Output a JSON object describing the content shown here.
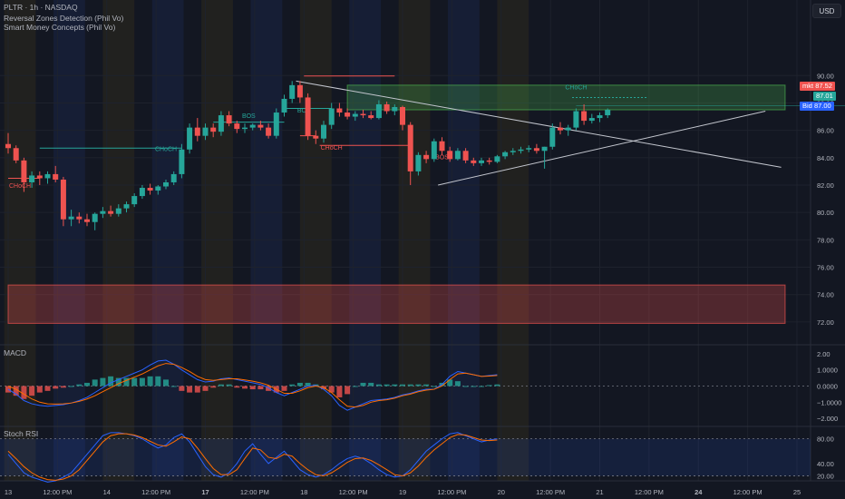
{
  "header": {
    "title": "PLTR · 1h · NASDAQ",
    "indicator_1": "Reversal Zones Detection (Phil Vo)",
    "indicator_2": "Smart Money Concepts (Phil Vo)"
  },
  "currency_label": "USD",
  "price_tags": {
    "last_label": "mkt",
    "last_value": "87.52",
    "mid_value": "87.01",
    "bid_label": "Bid",
    "bid_value": "87.00"
  },
  "colors": {
    "background": "#131722",
    "bull": "#26a69a",
    "bear": "#ef5350",
    "grid": "#1e222d",
    "text": "#b2b5be",
    "macd_line": "#2962ff",
    "signal_line": "#ff6d00",
    "demand_zone": "#ef5350",
    "supply_zone": "#4caf50",
    "session_a": "#2d2a1e",
    "session_b": "#1a2445"
  },
  "chart_data": [
    {
      "type": "candlestick",
      "title": "PLTR · 1h · NASDAQ",
      "ylim": [
        70.6,
        93.4
      ],
      "y_ticks": [
        "72.00",
        "74.00",
        "76.00",
        "78.00",
        "80.00",
        "82.00",
        "84.00",
        "86.00",
        "88.00",
        "90.00"
      ],
      "x_tick_labels": [
        "13",
        "12:00 PM",
        "14",
        "12:00 PM",
        "17",
        "12:00 PM",
        "18",
        "12:00 PM",
        "19",
        "12:00 PM",
        "20",
        "12:00 PM",
        "21",
        "12:00 PM",
        "24",
        "12:00 PM",
        "25"
      ],
      "x_tick_bars": [
        0,
        6.25,
        12.5,
        18.75,
        25,
        31.25,
        37.5,
        43.75,
        50,
        56.25,
        62.5,
        68.75,
        75,
        81.25,
        87.5,
        93.75,
        100
      ],
      "candles": [
        [
          85.0,
          85.8,
          84.3,
          84.7
        ],
        [
          84.7,
          84.9,
          83.6,
          83.8
        ],
        [
          83.8,
          84.0,
          81.5,
          82.2
        ],
        [
          82.2,
          83.0,
          81.8,
          82.7
        ],
        [
          82.7,
          83.0,
          82.0,
          82.5
        ],
        [
          82.5,
          83.0,
          82.1,
          82.8
        ],
        [
          82.8,
          83.4,
          82.2,
          82.4
        ],
        [
          82.4,
          82.6,
          79.0,
          79.5
        ],
        [
          79.5,
          80.2,
          79.0,
          79.7
        ],
        [
          79.7,
          80.0,
          79.2,
          79.5
        ],
        [
          79.5,
          79.9,
          79.0,
          79.3
        ],
        [
          79.3,
          80.0,
          78.7,
          79.9
        ],
        [
          79.9,
          80.4,
          79.6,
          80.1
        ],
        [
          80.1,
          80.5,
          79.7,
          79.9
        ],
        [
          79.9,
          80.6,
          79.7,
          80.3
        ],
        [
          80.3,
          80.8,
          80.0,
          80.6
        ],
        [
          80.6,
          81.4,
          80.4,
          81.2
        ],
        [
          81.2,
          82.0,
          81.0,
          81.8
        ],
        [
          81.8,
          82.1,
          81.3,
          81.6
        ],
        [
          81.6,
          82.0,
          81.3,
          81.9
        ],
        [
          81.9,
          82.4,
          81.7,
          82.2
        ],
        [
          82.2,
          83.0,
          82.0,
          82.8
        ],
        [
          82.8,
          85.0,
          82.5,
          84.6
        ],
        [
          84.6,
          86.5,
          84.3,
          86.2
        ],
        [
          86.2,
          86.9,
          85.2,
          85.6
        ],
        [
          85.6,
          86.5,
          85.3,
          86.2
        ],
        [
          86.2,
          86.5,
          85.5,
          85.9
        ],
        [
          85.9,
          87.4,
          85.6,
          87.1
        ],
        [
          87.1,
          87.4,
          86.3,
          86.5
        ],
        [
          86.5,
          86.7,
          85.8,
          86.1
        ],
        [
          86.1,
          86.5,
          85.8,
          86.2
        ],
        [
          86.2,
          86.5,
          86.0,
          86.4
        ],
        [
          86.4,
          86.7,
          86.0,
          86.2
        ],
        [
          86.2,
          86.5,
          85.4,
          85.6
        ],
        [
          85.6,
          87.6,
          85.4,
          87.3
        ],
        [
          87.3,
          88.6,
          87.0,
          88.3
        ],
        [
          88.3,
          89.6,
          88.0,
          89.3
        ],
        [
          89.3,
          89.6,
          88.0,
          88.4
        ],
        [
          88.4,
          88.7,
          85.3,
          85.6
        ],
        [
          85.6,
          86.0,
          85.0,
          85.4
        ],
        [
          85.4,
          86.7,
          85.1,
          86.4
        ],
        [
          86.4,
          88.0,
          86.1,
          87.6
        ],
        [
          87.6,
          88.0,
          87.0,
          87.3
        ],
        [
          87.3,
          87.6,
          86.8,
          87.0
        ],
        [
          87.0,
          87.4,
          86.7,
          87.2
        ],
        [
          87.2,
          87.5,
          86.9,
          87.1
        ],
        [
          87.1,
          87.4,
          86.8,
          86.9
        ],
        [
          86.9,
          88.2,
          86.8,
          87.9
        ],
        [
          87.9,
          88.1,
          87.2,
          87.4
        ],
        [
          87.4,
          87.9,
          87.1,
          87.7
        ],
        [
          87.7,
          87.8,
          86.0,
          86.4
        ],
        [
          86.4,
          86.6,
          82.0,
          83.0
        ],
        [
          83.0,
          84.4,
          82.7,
          84.2
        ],
        [
          84.2,
          84.5,
          83.6,
          83.9
        ],
        [
          83.9,
          85.4,
          83.7,
          85.2
        ],
        [
          85.2,
          85.5,
          84.2,
          84.5
        ],
        [
          84.5,
          84.8,
          83.7,
          83.9
        ],
        [
          83.9,
          84.7,
          83.8,
          84.5
        ],
        [
          84.5,
          84.7,
          83.6,
          83.8
        ],
        [
          83.8,
          84.0,
          83.4,
          83.6
        ],
        [
          83.6,
          84.0,
          83.4,
          83.8
        ],
        [
          83.8,
          84.0,
          83.5,
          83.7
        ],
        [
          83.7,
          84.2,
          83.6,
          84.1
        ],
        [
          84.1,
          84.5,
          83.9,
          84.4
        ],
        [
          84.4,
          84.7,
          84.2,
          84.5
        ],
        [
          84.5,
          84.8,
          84.3,
          84.6
        ],
        [
          84.6,
          84.9,
          84.4,
          84.7
        ],
        [
          84.7,
          85.0,
          84.3,
          84.5
        ],
        [
          84.5,
          84.8,
          83.2,
          84.8
        ],
        [
          84.8,
          86.5,
          84.6,
          86.2
        ],
        [
          86.2,
          86.6,
          85.7,
          86.0
        ],
        [
          86.0,
          86.4,
          85.6,
          86.2
        ],
        [
          86.2,
          87.6,
          86.0,
          87.4
        ],
        [
          87.4,
          87.9,
          86.4,
          86.7
        ],
        [
          86.7,
          87.2,
          86.5,
          86.9
        ],
        [
          86.9,
          87.3,
          86.6,
          87.1
        ],
        [
          87.1,
          87.6,
          86.9,
          87.5
        ]
      ],
      "labels": [
        {
          "text": "CHoCH",
          "bar": 1.5,
          "price": 81.8,
          "color": "bear"
        },
        {
          "text": "CHoCH",
          "bar": 20,
          "price": 84.5,
          "color": "bull"
        },
        {
          "text": "BOS",
          "bar": 30.5,
          "price": 86.9,
          "color": "bull"
        },
        {
          "text": "BOS",
          "bar": 37.5,
          "price": 87.3,
          "color": "bull"
        },
        {
          "text": "CHoCH",
          "bar": 41,
          "price": 84.6,
          "color": "bear"
        },
        {
          "text": "BOS",
          "bar": 55,
          "price": 83.9,
          "color": "bear"
        },
        {
          "text": "CHoCH",
          "bar": 72,
          "price": 89.0,
          "color": "bull"
        }
      ],
      "zones": [
        {
          "type": "supply",
          "bar_start": 43,
          "bar_end": 98.5,
          "price_top": 89.3,
          "price_bottom": 87.5
        },
        {
          "type": "demand",
          "bar_start": 0,
          "bar_end": 98.5,
          "price_top": 74.7,
          "price_bottom": 71.9
        }
      ]
    },
    {
      "type": "line",
      "title": "MACD",
      "ylim": [
        -2.5,
        2.5
      ],
      "y_ticks": [
        "2.00",
        "1.0000",
        "0.0000",
        "−1.0000",
        "−2.000"
      ],
      "series": [
        {
          "name": "MACD",
          "values": [
            -0.2,
            -0.5,
            -0.9,
            -1.1,
            -1.2,
            -1.25,
            -1.2,
            -1.15,
            -1.05,
            -0.9,
            -0.7,
            -0.4,
            -0.1,
            0.2,
            0.4,
            0.6,
            0.8,
            1.0,
            1.3,
            1.55,
            1.6,
            1.35,
            1.0,
            0.7,
            0.4,
            0.25,
            0.3,
            0.45,
            0.5,
            0.4,
            0.3,
            0.2,
            0.1,
            -0.1,
            -0.4,
            -0.6,
            -0.4,
            -0.2,
            0.0,
            0.05,
            -0.2,
            -0.6,
            -1.2,
            -1.5,
            -1.3,
            -1.1,
            -0.9,
            -0.85,
            -0.8,
            -0.7,
            -0.55,
            -0.45,
            -0.3,
            -0.2,
            -0.2,
            0.1,
            0.6,
            0.9,
            0.8,
            0.7,
            0.6,
            0.65,
            0.7
          ]
        },
        {
          "name": "Signal",
          "values": [
            0.0,
            -0.2,
            -0.5,
            -0.8,
            -1.0,
            -1.1,
            -1.12,
            -1.1,
            -1.05,
            -0.95,
            -0.8,
            -0.6,
            -0.35,
            -0.1,
            0.15,
            0.35,
            0.55,
            0.75,
            1.0,
            1.25,
            1.4,
            1.35,
            1.15,
            0.9,
            0.6,
            0.4,
            0.35,
            0.4,
            0.45,
            0.45,
            0.38,
            0.3,
            0.2,
            0.05,
            -0.2,
            -0.45,
            -0.45,
            -0.3,
            -0.1,
            0.0,
            -0.1,
            -0.4,
            -0.85,
            -1.25,
            -1.3,
            -1.2,
            -1.0,
            -0.9,
            -0.85,
            -0.75,
            -0.6,
            -0.5,
            -0.35,
            -0.25,
            -0.2,
            0.0,
            0.4,
            0.75,
            0.8,
            0.7,
            0.6,
            0.62,
            0.65
          ]
        }
      ]
    },
    {
      "type": "line",
      "title": "Stoch RSI",
      "ylim": [
        12,
        100
      ],
      "y_ticks": [
        "80.00",
        "40.00",
        "20.00"
      ],
      "series": [
        {
          "name": "K",
          "values": [
            55,
            40,
            25,
            18,
            14,
            10,
            12,
            18,
            25,
            40,
            55,
            70,
            85,
            90,
            90,
            88,
            85,
            80,
            72,
            65,
            70,
            82,
            88,
            75,
            55,
            35,
            22,
            18,
            25,
            40,
            60,
            72,
            55,
            40,
            50,
            60,
            45,
            30,
            22,
            18,
            22,
            30,
            40,
            48,
            52,
            48,
            40,
            30,
            22,
            18,
            20,
            30,
            45,
            60,
            70,
            80,
            88,
            90,
            85,
            80,
            75,
            78,
            80
          ]
        },
        {
          "name": "D",
          "values": [
            60,
            48,
            35,
            25,
            18,
            14,
            13,
            15,
            20,
            30,
            45,
            60,
            75,
            85,
            88,
            88,
            86,
            82,
            76,
            70,
            68,
            75,
            83,
            80,
            65,
            48,
            32,
            22,
            22,
            30,
            48,
            65,
            62,
            50,
            48,
            55,
            52,
            40,
            30,
            22,
            20,
            25,
            33,
            42,
            48,
            49,
            45,
            38,
            30,
            22,
            20,
            25,
            36,
            50,
            62,
            72,
            82,
            87,
            86,
            82,
            78,
            77,
            78
          ]
        }
      ]
    }
  ]
}
